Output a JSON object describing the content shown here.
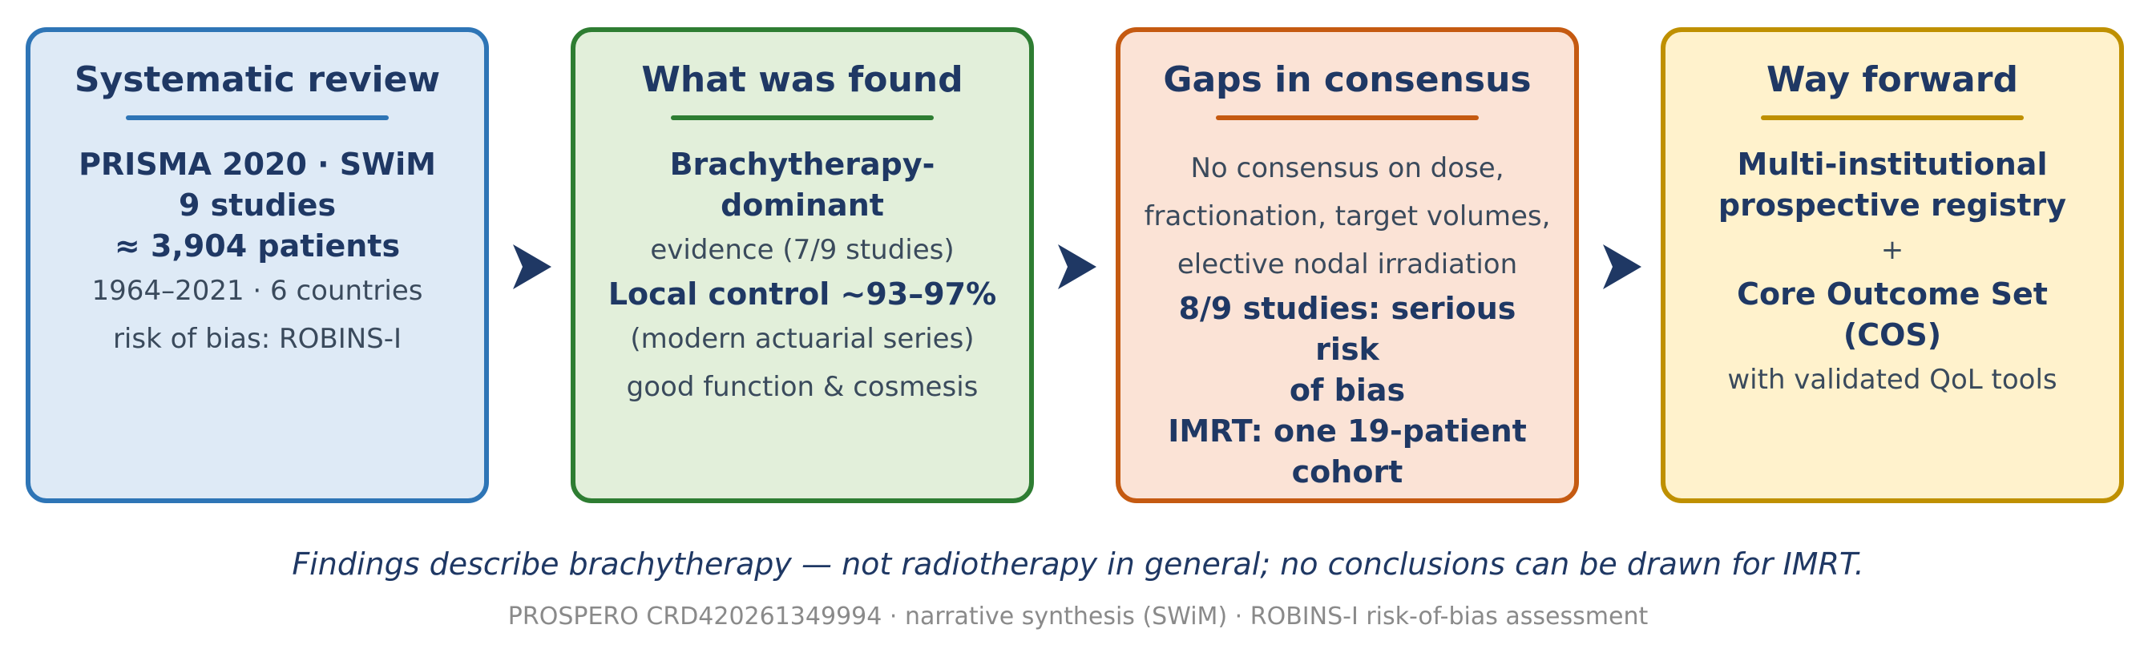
{
  "panels": [
    {
      "title": "Systematic review",
      "lines": [
        {
          "text": "PRISMA 2020 · SWiM",
          "style": "bold"
        },
        {
          "text": "9 studies",
          "style": "bold"
        },
        {
          "text": "≈ 3,904 patients",
          "style": "bold"
        },
        {
          "text": "1964–2021 · 6 countries",
          "style": "plain"
        },
        {
          "text": "risk of bias: ROBINS-I",
          "style": "plain"
        }
      ]
    },
    {
      "title": "What was found",
      "lines": [
        {
          "text": "Brachytherapy-",
          "style": "bold"
        },
        {
          "text": "dominant",
          "style": "bold"
        },
        {
          "text": "evidence (7/9 studies)",
          "style": "plain"
        },
        {
          "text": "Local control ~93–97%",
          "style": "bold"
        },
        {
          "text": "(modern actuarial series)",
          "style": "plain"
        },
        {
          "text": "good function & cosmesis",
          "style": "plain"
        }
      ]
    },
    {
      "title": "Gaps in consensus",
      "lines": [
        {
          "text": "No consensus on dose,",
          "style": "plain"
        },
        {
          "text": "fractionation, target volumes,",
          "style": "plain"
        },
        {
          "text": "elective nodal irradiation",
          "style": "plain"
        },
        {
          "text": "8/9 studies: serious risk",
          "style": "bold"
        },
        {
          "text": "of bias",
          "style": "bold"
        },
        {
          "text": "IMRT: one 19-patient",
          "style": "bold"
        },
        {
          "text": "cohort",
          "style": "bold"
        }
      ]
    },
    {
      "title": "Way forward",
      "lines": [
        {
          "text": "Multi-institutional",
          "style": "bold"
        },
        {
          "text": "prospective registry",
          "style": "bold"
        },
        {
          "text": "+",
          "style": "plus"
        },
        {
          "text": "Core Outcome Set (COS)",
          "style": "bold"
        },
        {
          "text": "with validated QoL tools",
          "style": "plain"
        }
      ]
    }
  ],
  "note": "Findings describe brachytherapy — not radiotherapy in general; no conclusions can be drawn for IMRT.",
  "footer": "PROSPERO CRD420261349994 · narrative synthesis (SWiM) · ROBINS-I risk-of-bias assessment",
  "colors": {
    "text_dark": "#1f3864",
    "panel_1": "#2e75b6",
    "panel_2": "#2e7d32",
    "panel_3": "#c55a11",
    "panel_4": "#bf9000"
  }
}
